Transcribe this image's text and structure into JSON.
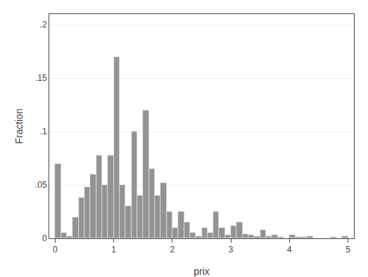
{
  "chart_data": {
    "type": "histogram",
    "xlabel": "prix",
    "ylabel": "Fraction",
    "color": "#939393",
    "bins": [
      0.0,
      0.1,
      0.2,
      0.3,
      0.4,
      0.5,
      0.6,
      0.7,
      0.8,
      0.9,
      1.0,
      1.1,
      1.2,
      1.3,
      1.4,
      1.5,
      1.6,
      1.7,
      1.8,
      1.9,
      2.0,
      2.1,
      2.2,
      2.3,
      2.4,
      2.5,
      2.6,
      2.7,
      2.8,
      2.9,
      3.0,
      3.1,
      3.2,
      3.3,
      3.4,
      3.5,
      3.6,
      3.7,
      3.8,
      3.9,
      4.0,
      4.1,
      4.2,
      4.3,
      4.4,
      4.5,
      4.6,
      4.7,
      4.8,
      4.9,
      5.0
    ],
    "values": [
      0.07,
      0.005,
      0.002,
      0.02,
      0.038,
      0.048,
      0.06,
      0.078,
      0.05,
      0.078,
      0.17,
      0.05,
      0.03,
      0.1,
      0.04,
      0.12,
      0.065,
      0.04,
      0.052,
      0.025,
      0.01,
      0.025,
      0.015,
      0.005,
      0.002,
      0.01,
      0.005,
      0.025,
      0.01,
      0.003,
      0.012,
      0.015,
      0.004,
      0.003,
      0.002,
      0.008,
      0.002,
      0.003,
      0.001,
      0.0,
      0.003,
      0.001,
      0.001,
      0.002,
      0.0,
      0.0,
      0.0,
      0.001,
      0.0,
      0.002
    ],
    "xlim": [
      -0.1,
      5.1
    ],
    "ylim": [
      0,
      0.21
    ],
    "xticks": [
      0,
      1,
      2,
      3,
      4,
      5
    ],
    "yticks": [
      0,
      {
        "value": 0.05,
        "label": ".05"
      },
      {
        "value": 0.1,
        "label": ".1"
      },
      {
        "value": 0.15,
        "label": ".15"
      },
      {
        "value": 0.2,
        "label": ".2"
      }
    ],
    "grid": true
  }
}
